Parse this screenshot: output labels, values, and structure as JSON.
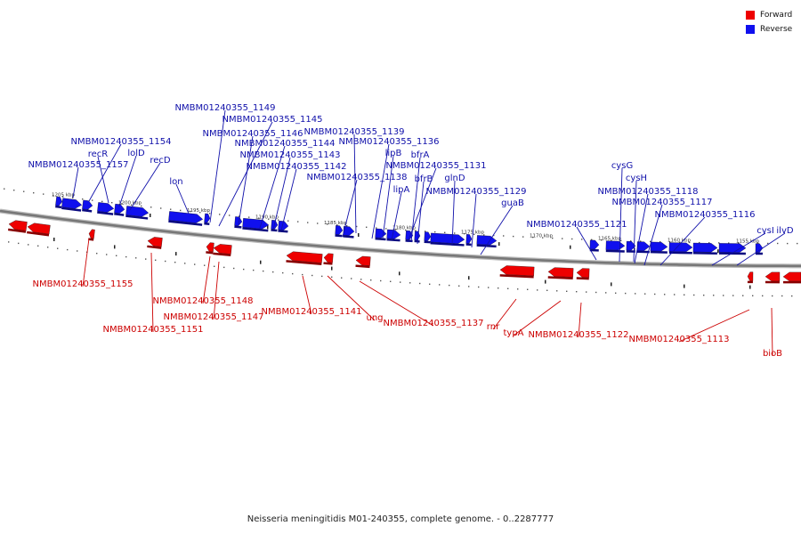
{
  "caption": "Neisseria meningitidis M01-240355, complete genome. - 0..2287777",
  "legend": [
    {
      "label": "Forward",
      "color": "#ee0000"
    },
    {
      "label": "Reverse",
      "color": "#1010ee"
    }
  ],
  "colors": {
    "forward": "#ee0000",
    "reverse": "#1010ee",
    "forward_label": "#cc0000",
    "reverse_label": "#1010aa",
    "backbone": "#777777"
  },
  "scale_ticks": [
    "1205 kbp",
    "1200 kbp",
    "1195 kbp",
    "1190 kbp",
    "1185 kbp",
    "1180 kbp",
    "1175 kbp",
    "1170 kbp",
    "1165 kbp",
    "1160 kbp",
    "1155 kbp"
  ],
  "reverse_genes": [
    "NMBM01240355_1157",
    "NMBM01240355_1154",
    "recR",
    "lolD",
    "recD",
    "lon",
    "NMBM01240355_1149",
    "NMBM01240355_1146",
    "NMBM01240355_1145",
    "NMBM01240355_1144",
    "NMBM01240355_1143",
    "NMBM01240355_1142",
    "NMBM01240355_1139",
    "NMBM01240355_1138",
    "NMBM01240355_1136",
    "lipB",
    "lipA",
    "NMBM01240355_1131",
    "bfrA",
    "bfrB",
    "glnD",
    "NMBM01240355_1129",
    "guaB",
    "NMBM01240355_1121",
    "cysG",
    "cysH",
    "NMBM01240355_1118",
    "NMBM01240355_1117",
    "NMBM01240355_1116",
    "cysI",
    "ilvD"
  ],
  "forward_genes": [
    "NMBM01240355_1155",
    "NMBM01240355_1151",
    "NMBM01240355_1148",
    "NMBM01240355_1147",
    "NMBM01240355_1141",
    "ung",
    "NMBM01240355_1137",
    "rnr",
    "typA",
    "NMBM01240355_1122",
    "NMBM01240355_1113",
    "bioB"
  ]
}
